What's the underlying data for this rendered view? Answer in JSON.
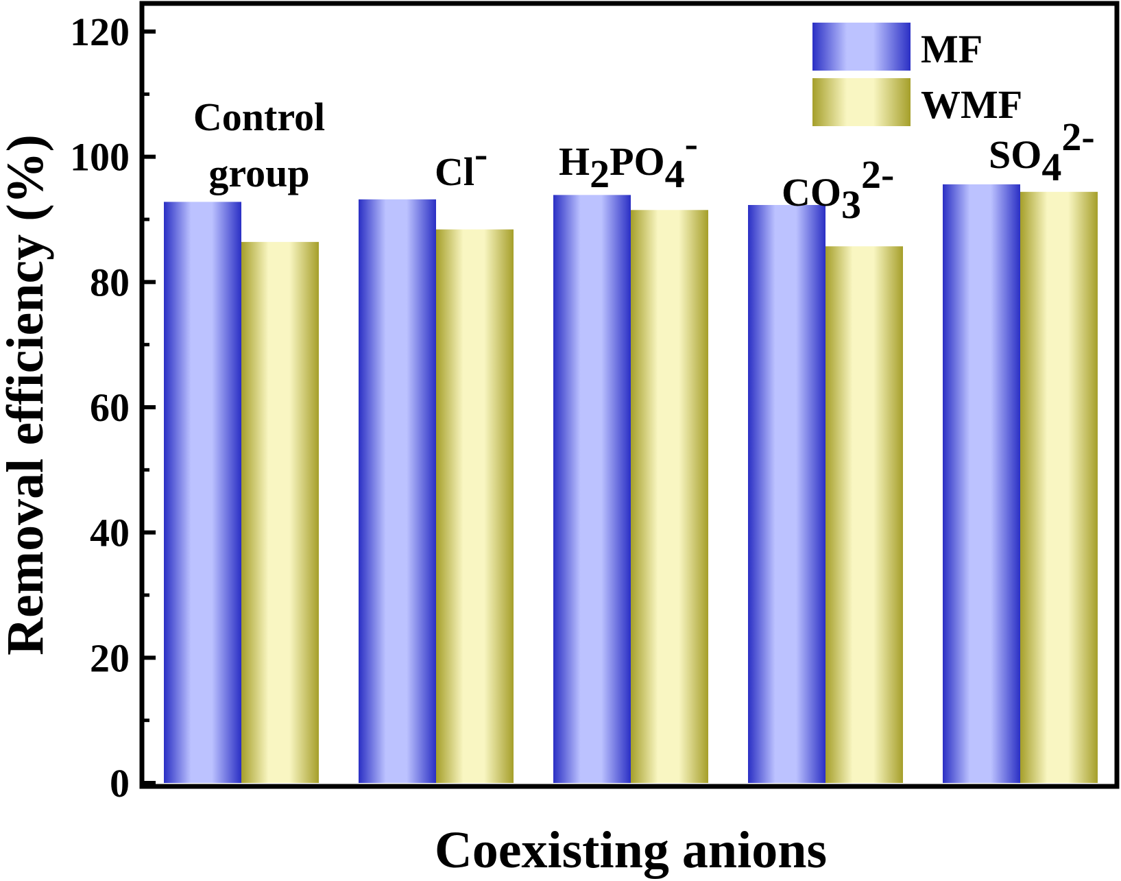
{
  "chart_data": {
    "type": "bar",
    "title": "",
    "xlabel": "Coexisting anions",
    "ylabel": "Removal efficiency (%)",
    "ylim": [
      0,
      120
    ],
    "yticks": [
      "0",
      "20",
      "40",
      "60",
      "80",
      "100",
      "120"
    ],
    "categories": [
      {
        "name": "Control group",
        "lines": [
          "Control",
          "group"
        ]
      },
      {
        "name": "Cl-",
        "base": "Cl",
        "sup": "-"
      },
      {
        "name": "H2PO4-",
        "parts": [
          [
            "H",
            "n"
          ],
          [
            "2",
            "sub"
          ],
          [
            "PO",
            "n"
          ],
          [
            "4",
            "sub"
          ],
          [
            "-",
            "sup"
          ]
        ]
      },
      {
        "name": "CO32-",
        "parts": [
          [
            "CO",
            "n"
          ],
          [
            "3",
            "sub"
          ],
          [
            "2-",
            "sup"
          ]
        ]
      },
      {
        "name": "SO42-",
        "parts": [
          [
            "SO",
            "n"
          ],
          [
            "4",
            "sub"
          ],
          [
            "2-",
            "sup"
          ]
        ]
      }
    ],
    "series": [
      {
        "name": "MF",
        "values": [
          92.8,
          93.2,
          93.9,
          92.3,
          95.6
        ]
      },
      {
        "name": "WMF",
        "values": [
          86.4,
          88.4,
          91.5,
          85.7,
          94.4
        ]
      }
    ],
    "legend_position": "top-right",
    "grid": false
  },
  "colors": {
    "mf_dark": "#2a2fc4",
    "mf_light": "#bcc2ff",
    "wmf_dark": "#a59f2a",
    "wmf_light": "#f9f6c2",
    "axis": "#000000"
  }
}
